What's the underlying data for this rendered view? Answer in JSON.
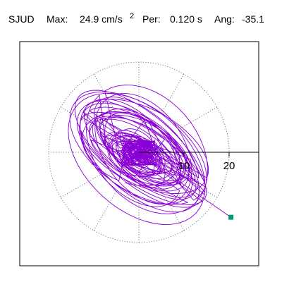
{
  "header": {
    "station": "SJUD",
    "max_label": "Max:",
    "max_value": "24.9 cm/s",
    "max_exp": "2",
    "per_label": "Per:",
    "per_value": "0.120 s",
    "ang_label": "Ang:",
    "ang_value": "-35.1"
  },
  "chart_data": {
    "type": "scatter",
    "title": "",
    "xlabel": "",
    "ylabel": "",
    "units": "cm/s²",
    "max_amplitude": 24.9,
    "period_s": 0.12,
    "angle_deg": -35.1,
    "radial_ticks": [
      10,
      20
    ],
    "radial_tick_labels": [
      "10",
      "20"
    ],
    "range": [
      0,
      20
    ],
    "grid": "polar-dotted",
    "trace_color": "#8b00d4",
    "endpoint_color": "#00997a",
    "endpoint": {
      "x": 20.4,
      "y": -14.4
    }
  }
}
